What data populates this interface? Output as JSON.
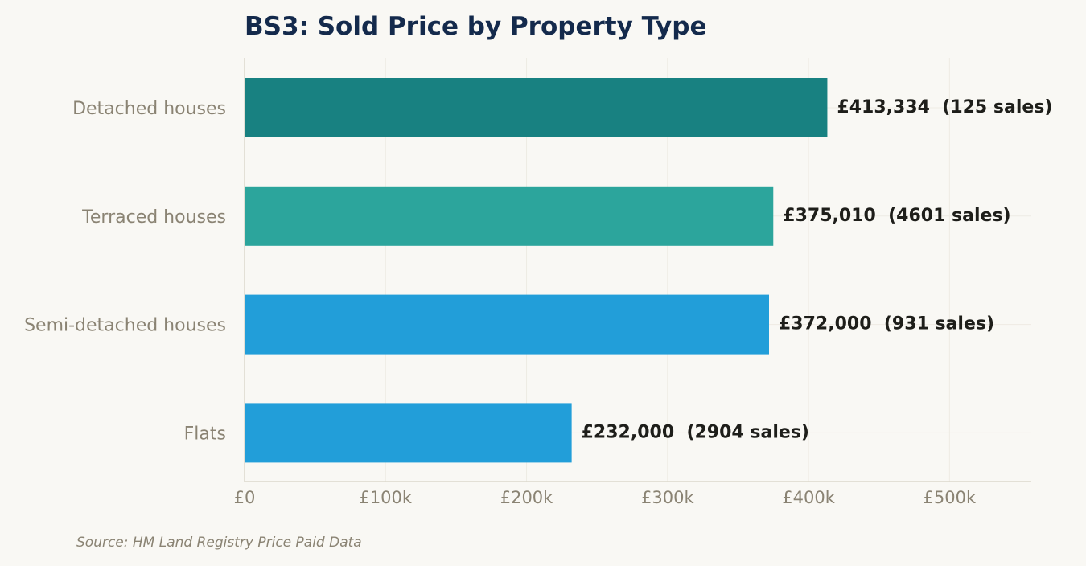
{
  "colors": {
    "background": "#f9f8f4",
    "title": "#142a4c",
    "category_text": "#8a8373",
    "tick_text": "#8a8373",
    "value_text": "#1e1e1a",
    "grid": "#eeebe3",
    "axis": "#dcd8cc",
    "source_text": "#8a8373"
  },
  "chart_data": {
    "type": "bar",
    "orientation": "horizontal",
    "title": "BS3: Sold Price by Property Type",
    "xlabel": "",
    "ylabel": "",
    "xlim": [
      0,
      558000
    ],
    "grid": true,
    "xticks": [
      0,
      100000,
      200000,
      300000,
      400000,
      500000
    ],
    "xtick_labels": [
      "£0",
      "£100k",
      "£200k",
      "£300k",
      "£400k",
      "£500k"
    ],
    "categories": [
      "Detached houses",
      "Terraced houses",
      "Semi-detached houses",
      "Flats"
    ],
    "values": [
      413334,
      375010,
      372000,
      232000
    ],
    "sales": [
      125,
      4601,
      931,
      2904
    ],
    "value_labels": [
      "£413,334  (125 sales)",
      "£375,010  (4601 sales)",
      "£372,000  (931 sales)",
      "£232,000  (2904 sales)"
    ],
    "bar_colors": [
      "#188181",
      "#2ca59c",
      "#229ed9",
      "#229ed9"
    ]
  },
  "footer": {
    "source": "Source: HM Land Registry Price Paid Data"
  }
}
